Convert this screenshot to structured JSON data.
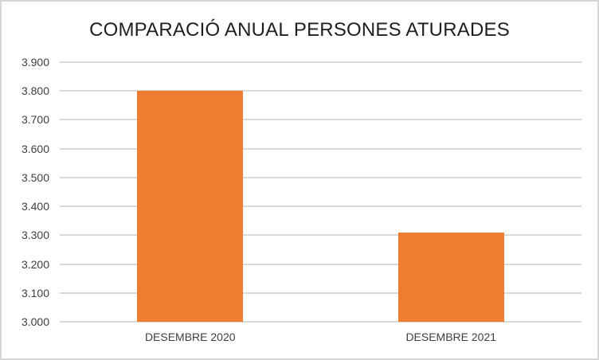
{
  "chart": {
    "title": "COMPARACIÓ ANUAL PERSONES ATURADES",
    "colors": {
      "bar": "#ED7D31",
      "gridline": "#D9D9D9",
      "title_text": "#1F1F1F",
      "axis_text": "#3F3F3F",
      "background": "#FFFFFF",
      "border": "#D6D6D6"
    }
  },
  "chart_data": {
    "type": "bar",
    "title": "COMPARACIÓ ANUAL PERSONES ATURADES",
    "categories": [
      "DESEMBRE 2020",
      "DESEMBRE 2021"
    ],
    "values": [
      3800,
      3310
    ],
    "xlabel": "",
    "ylabel": "",
    "ylim": [
      3000,
      3900
    ],
    "ytick_step": 100,
    "ytick_labels": [
      "3.000",
      "3.100",
      "3.200",
      "3.300",
      "3.400",
      "3.500",
      "3.600",
      "3.700",
      "3.800",
      "3.900"
    ],
    "grid": true,
    "legend": false,
    "bar_color": "#ED7D31",
    "number_format": "thousands separator is a dot (European format)"
  }
}
